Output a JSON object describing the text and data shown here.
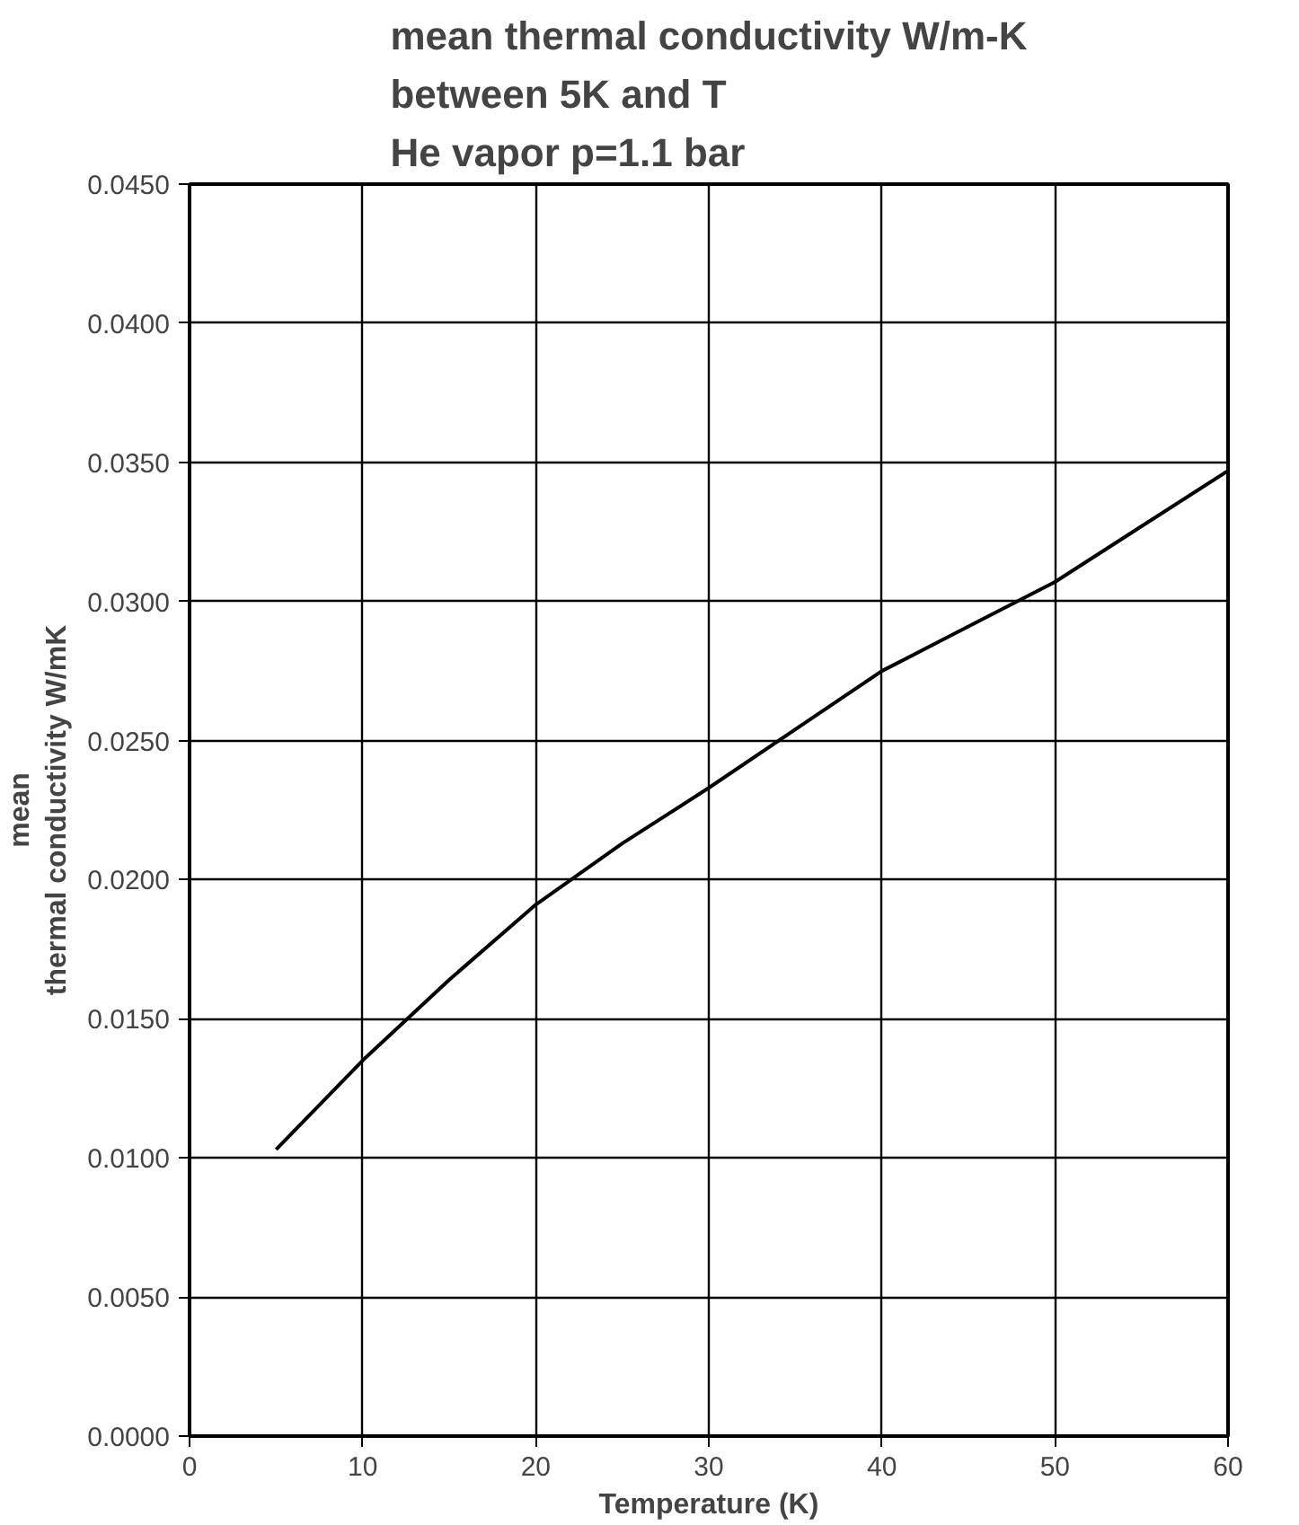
{
  "chart_data": {
    "type": "line",
    "title": "mean thermal conductivity W/m-K\nbetween 5K and T\nHe vapor p=1.1 bar",
    "xlabel": "Temperature (K)",
    "ylabel": "mean\nthermal conductivity W/mK",
    "x": [
      5,
      10,
      15,
      20,
      25,
      30,
      35,
      40,
      45,
      50,
      55,
      60
    ],
    "series": [
      {
        "color": "#000000",
        "values": [
          0.0103,
          0.0135,
          0.0164,
          0.0191,
          0.0213,
          0.0233,
          0.0254,
          0.0275,
          0.0291,
          0.0307,
          0.0327,
          0.0347
        ]
      }
    ],
    "xlim": [
      0,
      60
    ],
    "xticks": [
      0,
      10,
      20,
      30,
      40,
      50,
      60
    ],
    "ylim": [
      0,
      0.045
    ],
    "yticks": [
      {
        "value": 0,
        "label": "0.0000"
      },
      {
        "value": 0.005,
        "label": "0.0050"
      },
      {
        "value": 0.01,
        "label": "0.0100"
      },
      {
        "value": 0.015,
        "label": "0.0150"
      },
      {
        "value": 0.02,
        "label": "0.0200"
      },
      {
        "value": 0.025,
        "label": "0.0250"
      },
      {
        "value": 0.03,
        "label": "0.0300"
      },
      {
        "value": 0.035,
        "label": "0.0350"
      },
      {
        "value": 0.04,
        "label": "0.0400"
      },
      {
        "value": 0.045,
        "label": "0.0450"
      }
    ],
    "grid": true,
    "line_style": "solid"
  }
}
